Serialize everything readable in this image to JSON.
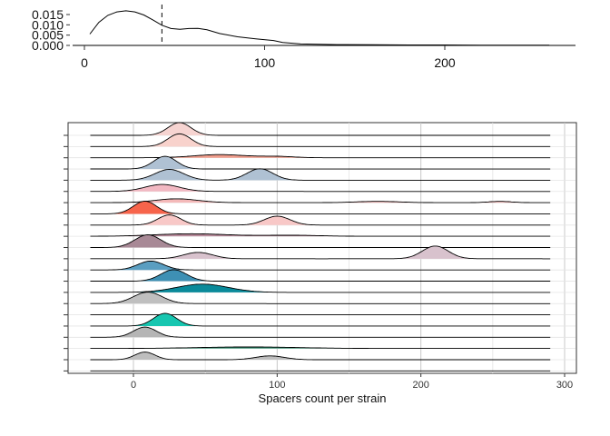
{
  "chart_data": [
    {
      "type": "line",
      "title": "",
      "xlabel": "",
      "ylabel": "",
      "xlim": [
        -6,
        272
      ],
      "ylim": [
        0,
        0.018
      ],
      "x_ticks": [
        0,
        100,
        200
      ],
      "x_tick_labels": [
        "0",
        "100",
        "200"
      ],
      "y_ticks": [
        0.0,
        0.005,
        0.01,
        0.015
      ],
      "y_tick_labels": [
        "0.000",
        "0.005",
        "0.010",
        "0.015"
      ],
      "grid": false,
      "reference_line": {
        "x": 43,
        "style": "dashed"
      },
      "series": [
        {
          "x": [
            3,
            8,
            13,
            18,
            23,
            28,
            33,
            38,
            43,
            48,
            53,
            58,
            63,
            68,
            75,
            85,
            95,
            105,
            110,
            120,
            140,
            160,
            180,
            200,
            220,
            240,
            258
          ],
          "y": [
            0.0055,
            0.0112,
            0.0146,
            0.0163,
            0.0168,
            0.0163,
            0.0148,
            0.0124,
            0.0098,
            0.0082,
            0.0078,
            0.0082,
            0.0083,
            0.0076,
            0.0058,
            0.0042,
            0.0032,
            0.0024,
            0.0014,
            0.0007,
            0.0004,
            0.0003,
            0.0002,
            0.0002,
            0.0001,
            0.0001,
            0.0001
          ]
        }
      ]
    },
    {
      "type": "area",
      "subtype": "ridgeline",
      "title": "",
      "xlabel": "Spacers count per strain",
      "ylabel": "",
      "xlim": [
        -46,
        306
      ],
      "x_ticks": [
        0,
        100,
        200,
        300
      ],
      "x_tick_labels": [
        "0",
        "100",
        "200",
        "300"
      ],
      "x_range_drawn": [
        -30,
        290
      ],
      "grid": true,
      "row_count": 22,
      "rows": [
        {
          "color": "#F6D4D1",
          "peaks": [
            [
              32,
              8,
              1.0
            ]
          ]
        },
        {
          "color": "#F8D2CC",
          "peaks": [
            [
              32,
              8,
              1.0
            ]
          ]
        },
        {
          "color": "#F09D8C",
          "peaks": [
            [
              60,
              18,
              0.25
            ],
            [
              100,
              12,
              0.1
            ]
          ]
        },
        {
          "color": "#AFC1D3",
          "peaks": [
            [
              22,
              8,
              1.0
            ]
          ]
        },
        {
          "color": "#AFC1D3",
          "peaks": [
            [
              25,
              10,
              0.85
            ],
            [
              88,
              9,
              0.9
            ]
          ]
        },
        {
          "color": "#F2B8C2",
          "peaks": [
            [
              20,
              12,
              0.55
            ]
          ]
        },
        {
          "color": "#F4B9B9",
          "peaks": [
            [
              30,
              15,
              0.3
            ],
            [
              170,
              15,
              0.1
            ],
            [
              255,
              8,
              0.1
            ]
          ]
        },
        {
          "color": "#F7644B",
          "peaks": [
            [
              8,
              8,
              1.0
            ]
          ]
        },
        {
          "color": "#F8C8C7",
          "peaks": [
            [
              25,
              8,
              0.8
            ],
            [
              100,
              9,
              0.7
            ]
          ]
        },
        {
          "color": "#B58898",
          "peaks": [
            [
              40,
              25,
              0.2
            ],
            [
              110,
              20,
              0.08
            ]
          ]
        },
        {
          "color": "#A88996",
          "peaks": [
            [
              10,
              9,
              1.0
            ]
          ]
        },
        {
          "color": "#D8C2CD",
          "peaks": [
            [
              45,
              10,
              0.5
            ],
            [
              210,
              9,
              1.0
            ]
          ]
        },
        {
          "color": "#5A9EC1",
          "peaks": [
            [
              12,
              9,
              0.7
            ]
          ]
        },
        {
          "color": "#3E90B4",
          "peaks": [
            [
              28,
              9,
              0.9
            ]
          ]
        },
        {
          "color": "#0A8A9A",
          "peaks": [
            [
              48,
              18,
              0.65
            ]
          ]
        },
        {
          "color": "#BFBFBF",
          "peaks": [
            [
              10,
              10,
              0.9
            ]
          ]
        },
        {
          "color": "#E0E0E0",
          "peaks": []
        },
        {
          "color": "#17C6B0",
          "peaks": [
            [
              22,
              8,
              1.0
            ]
          ]
        },
        {
          "color": "#B5B5B5",
          "peaks": [
            [
              8,
              8,
              0.8
            ]
          ]
        },
        {
          "color": "#2A8C6C",
          "peaks": [
            [
              80,
              35,
              0.12
            ]
          ]
        },
        {
          "color": "#BEBEBE",
          "peaks": [
            [
              8,
              7,
              0.6
            ],
            [
              95,
              10,
              0.3
            ]
          ]
        },
        {
          "color": "#FFFFFF",
          "peaks": []
        }
      ]
    }
  ]
}
